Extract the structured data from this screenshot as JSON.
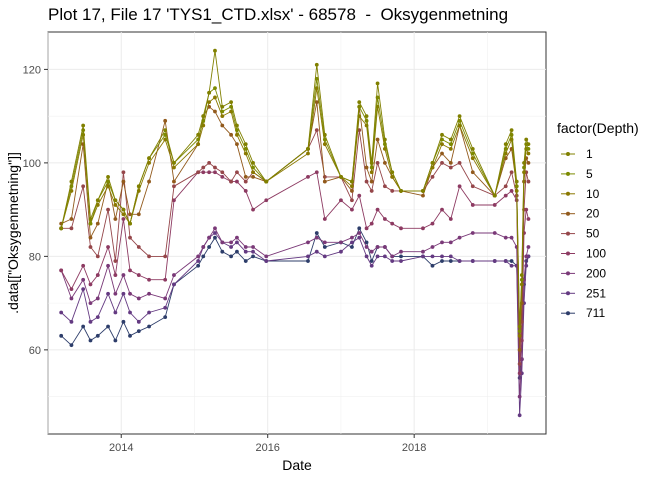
{
  "chart_data": {
    "type": "line",
    "title": "Plot 17, File 17 'TYS1_CTD.xlsx' - 68578  -  Oksygenmetning",
    "xlabel": "Date",
    "ylabel": ".data[[\"Oksygenmetning\"]]",
    "x_ticks": [
      "2014",
      "2016",
      "2018"
    ],
    "y_ticks": [
      "60",
      "80",
      "100",
      "120"
    ],
    "xlim": [
      2013.0,
      2019.8
    ],
    "ylim": [
      42,
      128
    ],
    "grid": true,
    "legend": {
      "title": "factor(Depth)",
      "position": "right"
    },
    "x_dates": [
      2013.18,
      2013.32,
      2013.48,
      2013.58,
      2013.68,
      2013.82,
      2013.92,
      2014.03,
      2014.12,
      2014.24,
      2014.38,
      2014.6,
      2014.72,
      2015.05,
      2015.12,
      2015.2,
      2015.28,
      2015.38,
      2015.5,
      2015.58,
      2015.7,
      2015.8,
      2015.98,
      2016.55,
      2016.67,
      2016.78,
      2017.0,
      2017.15,
      2017.25,
      2017.35,
      2017.42,
      2017.5,
      2017.6,
      2017.7,
      2017.82,
      2018.12,
      2018.25,
      2018.38,
      2018.5,
      2018.62,
      2018.8,
      2019.1,
      2019.25,
      2019.33,
      2019.4,
      2019.44,
      2019.47,
      2019.5,
      2019.53,
      2019.56
    ],
    "series": [
      {
        "name": "1",
        "color": "#808000",
        "values": [
          86,
          96,
          108,
          88,
          92,
          97,
          92,
          90,
          87,
          95,
          101,
          107,
          100,
          106,
          110,
          115,
          124,
          112,
          113,
          108,
          104,
          100,
          96,
          103,
          121,
          106,
          97,
          96,
          113,
          110,
          100,
          117,
          105,
          98,
          94,
          94,
          100,
          106,
          105,
          110,
          103,
          93,
          104,
          107,
          96,
          65,
          76,
          100,
          105,
          104
        ]
      },
      {
        "name": "5",
        "color": "#7c8a00",
        "values": [
          86,
          95,
          107,
          87,
          92,
          96,
          92,
          90,
          87,
          95,
          101,
          106,
          100,
          105,
          109,
          115,
          116,
          111,
          112,
          107,
          103,
          99,
          96,
          103,
          118,
          105,
          97,
          96,
          112,
          109,
          99,
          114,
          104,
          98,
          94,
          94,
          100,
          105,
          104,
          109,
          102,
          93,
          103,
          106,
          95,
          64,
          75,
          99,
          104,
          103
        ]
      },
      {
        "name": "10",
        "color": "#8a7800",
        "values": [
          86,
          94,
          106,
          87,
          91,
          95,
          91,
          89,
          87,
          94,
          100,
          105,
          99,
          104,
          108,
          113,
          114,
          110,
          111,
          106,
          102,
          98,
          96,
          102,
          116,
          104,
          97,
          95,
          110,
          108,
          98,
          112,
          103,
          97,
          94,
          94,
          99,
          104,
          103,
          108,
          101,
          93,
          102,
          105,
          94,
          63,
          74,
          98,
          103,
          102
        ]
      },
      {
        "name": "20",
        "color": "#925a1c",
        "values": [
          87,
          88,
          104,
          84,
          87,
          96,
          88,
          96,
          89,
          89,
          96,
          109,
          96,
          104,
          110,
          112,
          111,
          108,
          106,
          104,
          97,
          97,
          96,
          103,
          113,
          96,
          97,
          94,
          112,
          99,
          96,
          105,
          100,
          97,
          94,
          93,
          99,
          102,
          100,
          108,
          98,
          93,
          101,
          103,
          95,
          60,
          70,
          96,
          101,
          100
        ]
      },
      {
        "name": "50",
        "color": "#95464a",
        "values": [
          86,
          86,
          95,
          82,
          80,
          90,
          79,
          98,
          84,
          82,
          80,
          80,
          95,
          98,
          99,
          100,
          99,
          98,
          96,
          98,
          96,
          98,
          96,
          103,
          107,
          97,
          97,
          92,
          107,
          96,
          94,
          100,
          95,
          94,
          94,
          94,
          97,
          100,
          99,
          100,
          95,
          93,
          95,
          98,
          93,
          57,
          66,
          90,
          98,
          96
        ]
      },
      {
        "name": "100",
        "color": "#8d3a62",
        "values": [
          77,
          73,
          78,
          74,
          76,
          82,
          76,
          88,
          77,
          76,
          75,
          75,
          92,
          98,
          98,
          98,
          98,
          97,
          96,
          96,
          94,
          90,
          92,
          97,
          98,
          88,
          92,
          90,
          93,
          86,
          87,
          90,
          88,
          87,
          86,
          86,
          87,
          90,
          88,
          95,
          91,
          91,
          93,
          94,
          92,
          55,
          62,
          85,
          90,
          88
        ]
      },
      {
        "name": "200",
        "color": "#7a3978",
        "values": [
          77,
          71,
          75,
          70,
          71,
          78,
          72,
          76,
          72,
          71,
          72,
          71,
          76,
          80,
          82,
          84,
          86,
          83,
          83,
          84,
          82,
          82,
          80,
          83,
          84,
          83,
          83,
          84,
          85,
          82,
          81,
          82,
          82,
          80,
          81,
          81,
          82,
          83,
          83,
          84,
          85,
          85,
          84,
          84,
          82,
          50,
          58,
          75,
          80,
          82
        ]
      },
      {
        "name": "251",
        "color": "#643a82",
        "values": [
          68,
          66,
          73,
          66,
          67,
          72,
          68,
          72,
          68,
          66,
          68,
          69,
          74,
          79,
          82,
          84,
          85,
          83,
          82,
          83,
          81,
          81,
          79,
          80,
          81,
          80,
          81,
          83,
          84,
          80,
          78,
          80,
          80,
          79,
          79,
          80,
          80,
          80,
          80,
          79,
          79,
          79,
          79,
          78,
          78,
          46,
          55,
          70,
          78,
          80
        ]
      },
      {
        "name": "711",
        "color": "#2d3d6a",
        "values": [
          63,
          61,
          65,
          62,
          63,
          65,
          62,
          66,
          63,
          64,
          65,
          67,
          74,
          78,
          80,
          82,
          84,
          81,
          80,
          81,
          79,
          80,
          79,
          79,
          85,
          82,
          83,
          82,
          86,
          83,
          79,
          82,
          82,
          80,
          80,
          80,
          78,
          79,
          79,
          79,
          79,
          79,
          79,
          79,
          78,
          54,
          58,
          74,
          79,
          80
        ]
      }
    ]
  }
}
